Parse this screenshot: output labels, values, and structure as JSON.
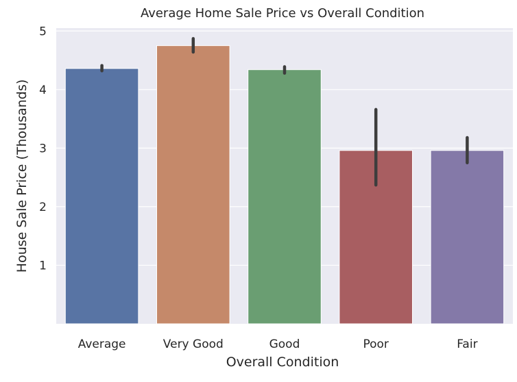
{
  "chart_data": {
    "type": "bar",
    "title": "Average Home Sale Price vs Overall Condition",
    "xlabel": "Overall Condition",
    "ylabel": "House Sale Price (Thousands)",
    "categories": [
      "Average",
      "Very Good",
      "Good",
      "Poor",
      "Fair"
    ],
    "values": [
      4.36,
      4.75,
      4.34,
      2.96,
      2.96
    ],
    "error_bars": [
      {
        "low": 4.32,
        "high": 4.41
      },
      {
        "low": 4.64,
        "high": 4.87
      },
      {
        "low": 4.28,
        "high": 4.39
      },
      {
        "low": 2.37,
        "high": 3.66
      },
      {
        "low": 2.75,
        "high": 3.18
      }
    ],
    "bar_colors": [
      "#5874a4",
      "#c5896a",
      "#6a9e72",
      "#a85e61",
      "#8479a8"
    ],
    "ylim": [
      0,
      5.05
    ],
    "yticks": [
      1,
      2,
      3,
      4,
      5
    ],
    "grid": true,
    "background": "#eaeaf2"
  }
}
